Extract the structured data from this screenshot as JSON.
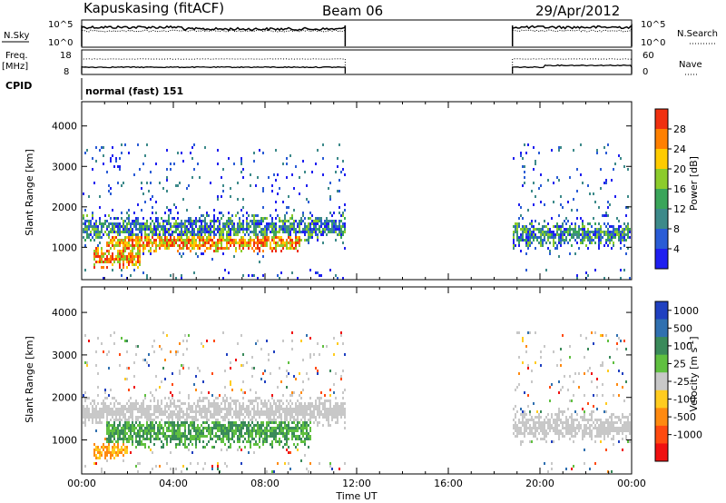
{
  "header": {
    "station": "Kapuskasing (fitACF)",
    "beam": "Beam 06",
    "date": "29/Apr/2012"
  },
  "status": {
    "nsky_label": "N.Sky",
    "nsearch_label": "N.Search",
    "nsky_ticks": [
      "10^5",
      "10^0"
    ],
    "nsearch_ticks": [
      "10^5",
      "10^0"
    ],
    "freq_label_1": "Freq.",
    "freq_label_2": "[MHz]",
    "freq_ticks": [
      "18",
      "8"
    ],
    "nave_label": "Nave",
    "nave_ticks": [
      "60",
      "0"
    ],
    "cpid_label": "CPID",
    "cpid_text": "normal (fast) 151"
  },
  "chart_data": [
    {
      "type": "heatmap",
      "name": "power",
      "xlabel": "",
      "ylabel": "Slant Range [km]",
      "xlim": [
        0,
        24
      ],
      "ylim": [
        200,
        4600
      ],
      "yticks": [
        "1000",
        "2000",
        "3000",
        "4000"
      ],
      "ytick_values": [
        1000,
        2000,
        3000,
        4000
      ],
      "colorbar_label": "Power [dB]",
      "colorbar_ticks": [
        "4",
        "8",
        "12",
        "16",
        "20",
        "24",
        "28"
      ],
      "colorbar_colors": [
        "#1f1ff0",
        "#2a5cd6",
        "#3d8a8a",
        "#3aa55a",
        "#8ccc2c",
        "#ffcc00",
        "#ff8000",
        "#f03010"
      ],
      "data_windows_hours": [
        [
          0,
          11.5
        ],
        [
          18.8,
          24
        ]
      ],
      "layers": [
        {
          "hours": [
            0.0,
            11.5
          ],
          "range_km": [
            1300,
            1700
          ],
          "level": "medium"
        },
        {
          "hours": [
            1.0,
            9.5
          ],
          "range_km": [
            1000,
            1300
          ],
          "level": "high"
        },
        {
          "hours": [
            0.5,
            2.5
          ],
          "range_km": [
            600,
            950
          ],
          "level": "high"
        },
        {
          "hours": [
            18.8,
            24.0
          ],
          "range_km": [
            1150,
            1550
          ],
          "level": "medium"
        }
      ]
    },
    {
      "type": "heatmap",
      "name": "velocity",
      "xlabel": "Time UT",
      "ylabel": "Slant Range [km]",
      "xlim": [
        0,
        24
      ],
      "ylim": [
        200,
        4600
      ],
      "xticks": [
        "00:00",
        "04:00",
        "08:00",
        "12:00",
        "16:00",
        "20:00",
        "00:00"
      ],
      "xtick_values": [
        0,
        4,
        8,
        12,
        16,
        20,
        24
      ],
      "yticks": [
        "1000",
        "2000",
        "3000",
        "4000"
      ],
      "ytick_values": [
        1000,
        2000,
        3000,
        4000
      ],
      "colorbar_label": "Velocity [m s^-1]",
      "colorbar_ticks": [
        "1000",
        "500",
        "100",
        "25",
        "-25",
        "-100",
        "-500",
        "-1000"
      ],
      "colorbar_colors": [
        "#2040c0",
        "#3070b0",
        "#3a8a5a",
        "#60c040",
        "#c8c8c8",
        "#ffcc20",
        "#ff8a10",
        "#ff4a10",
        "#f01010"
      ],
      "data_windows_hours": [
        [
          0,
          11.5
        ],
        [
          18.8,
          24
        ]
      ],
      "layers": [
        {
          "hours": [
            0.0,
            11.5
          ],
          "range_km": [
            1500,
            1900
          ],
          "level": "grey"
        },
        {
          "hours": [
            1.0,
            10.0
          ],
          "range_km": [
            1000,
            1500
          ],
          "level": "green"
        },
        {
          "hours": [
            0.5,
            2.0
          ],
          "range_km": [
            650,
            900
          ],
          "level": "orange"
        },
        {
          "hours": [
            18.8,
            24.0
          ],
          "range_km": [
            1150,
            1550
          ],
          "level": "grey"
        }
      ]
    }
  ]
}
